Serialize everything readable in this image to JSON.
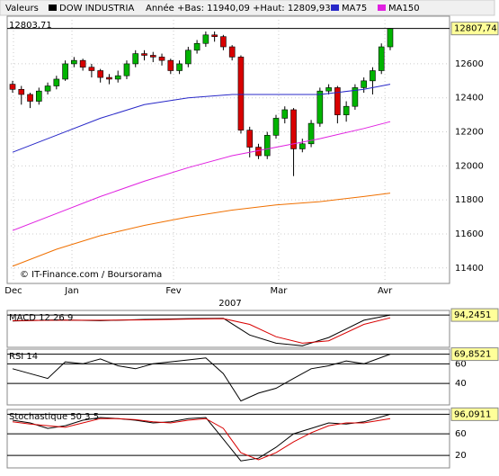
{
  "chart_data": [
    {
      "type": "candlestick",
      "legend_title": "Valeurs",
      "subtitle": "Année +Bas: 11940,09 +Haut: 12809,93",
      "annotation": "12803,71",
      "source": "© IT-Finance.com / Boursorama",
      "xlabel": "2007",
      "candles": {
        "name": "DOW INDUSTRIA",
        "color": "#000000",
        "up_color": "#00b400",
        "down_color": "#d80000",
        "open": [
          12480,
          12450,
          12420,
          12380,
          12440,
          12470,
          12510,
          12600,
          12620,
          12580,
          12560,
          12520,
          12510,
          12530,
          12600,
          12660,
          12650,
          12640,
          12620,
          12560,
          12600,
          12680,
          12720,
          12770,
          12760,
          12700,
          12640,
          12210,
          12110,
          12060,
          12180,
          12280,
          12330,
          12100,
          12130,
          12250,
          12440,
          12460,
          12300,
          12350,
          12460,
          12500,
          12560,
          12700
        ],
        "close": [
          12450,
          12420,
          12380,
          12440,
          12470,
          12510,
          12600,
          12620,
          12580,
          12560,
          12520,
          12510,
          12530,
          12600,
          12660,
          12650,
          12640,
          12620,
          12560,
          12600,
          12680,
          12720,
          12770,
          12760,
          12700,
          12640,
          12210,
          12110,
          12060,
          12180,
          12280,
          12330,
          12100,
          12130,
          12250,
          12440,
          12460,
          12300,
          12350,
          12460,
          12500,
          12560,
          12700,
          12807.74
        ],
        "high": [
          12500,
          12470,
          12430,
          12460,
          12490,
          12530,
          12620,
          12640,
          12630,
          12600,
          12570,
          12540,
          12560,
          12620,
          12680,
          12680,
          12670,
          12660,
          12630,
          12620,
          12700,
          12740,
          12790,
          12790,
          12770,
          12710,
          12650,
          12230,
          12130,
          12200,
          12300,
          12350,
          12340,
          12160,
          12270,
          12460,
          12480,
          12470,
          12380,
          12480,
          12520,
          12580,
          12720,
          12809.93
        ],
        "low": [
          12430,
          12360,
          12340,
          12360,
          12420,
          12450,
          12500,
          12580,
          12560,
          12520,
          12490,
          12480,
          12490,
          12510,
          12580,
          12620,
          12610,
          12590,
          12540,
          12540,
          12580,
          12660,
          12700,
          12730,
          12680,
          12620,
          12190,
          12050,
          12040,
          12040,
          12160,
          12250,
          11940.09,
          12080,
          12110,
          12230,
          12420,
          12250,
          12260,
          12330,
          12430,
          12420,
          12540,
          12680
        ]
      },
      "series": [
        {
          "name": "MA75",
          "color": "#2828c8",
          "x": [
            0,
            5,
            10,
            15,
            20,
            25,
            30,
            35,
            40,
            43
          ],
          "values": [
            12080,
            12180,
            12280,
            12360,
            12400,
            12420,
            12420,
            12420,
            12450,
            12480
          ]
        },
        {
          "name": "MA150",
          "color": "#e020e0",
          "x": [
            0,
            5,
            10,
            15,
            20,
            25,
            30,
            35,
            40,
            43
          ],
          "values": [
            11620,
            11720,
            11820,
            11910,
            11990,
            12060,
            12110,
            12160,
            12220,
            12260
          ]
        },
        {
          "color": "#f07000",
          "x": [
            0,
            5,
            10,
            15,
            20,
            25,
            30,
            35,
            40,
            43
          ],
          "values": [
            11410,
            11510,
            11590,
            11650,
            11700,
            11740,
            11770,
            11790,
            11820,
            11840
          ]
        }
      ],
      "last_value": {
        "value": 12807.74,
        "label": "12807,74"
      },
      "xlim": [
        -0.614,
        49.76
      ],
      "ylim": [
        11309,
        12880
      ],
      "yticks": [
        11400,
        11600,
        11800,
        12000,
        12200,
        12400,
        12600
      ],
      "xticks": [
        {
          "value": 0.1,
          "label": "Dec"
        },
        {
          "value": 6.76,
          "label": "Jan"
        },
        {
          "value": 18.33,
          "label": "Fev"
        },
        {
          "value": 30.3,
          "label": "Mar"
        },
        {
          "value": 42.4,
          "label": "Avr"
        }
      ],
      "grid": true
    },
    {
      "type": "line",
      "title": "MACD 12 26 9",
      "xlim": [
        -0.614,
        49.76
      ],
      "ylim": [
        -300,
        150
      ],
      "yticks": [],
      "last_value": {
        "value": 94.2451,
        "label": "94,2451"
      },
      "series": [
        {
          "color": "#000000",
          "x": [
            0,
            5,
            10,
            15,
            20,
            24,
            27,
            30,
            33,
            36,
            40,
            43
          ],
          "values": [
            20,
            35,
            25,
            40,
            50,
            55,
            -150,
            -250,
            -280,
            -180,
            30,
            94.2451
          ]
        },
        {
          "color": "#d80000",
          "x": [
            0,
            5,
            10,
            15,
            20,
            24,
            27,
            30,
            33,
            36,
            40,
            43
          ],
          "values": [
            25,
            30,
            30,
            35,
            45,
            50,
            -20,
            -170,
            -250,
            -220,
            -20,
            60
          ]
        }
      ]
    },
    {
      "type": "line",
      "title": "RSI 14",
      "xlim": [
        -0.614,
        49.76
      ],
      "ylim": [
        18,
        75
      ],
      "yticks": [
        40,
        60
      ],
      "last_value": {
        "value": 69.8521,
        "label": "69,8521"
      },
      "series": [
        {
          "color": "#000000",
          "x": [
            0,
            2,
            4,
            6,
            8,
            10,
            12,
            14,
            16,
            18,
            20,
            22,
            24,
            26,
            28,
            30,
            32,
            34,
            36,
            38,
            40,
            43
          ],
          "values": [
            55,
            50,
            45,
            62,
            60,
            65,
            58,
            55,
            60,
            62,
            64,
            66,
            50,
            22,
            30,
            35,
            45,
            55,
            58,
            63,
            60,
            69.8521
          ]
        }
      ]
    },
    {
      "type": "line",
      "title": "Stochastique 50 3 5",
      "xlim": [
        -0.614,
        49.76
      ],
      "ylim": [
        -3,
        105
      ],
      "yticks": [
        20,
        60
      ],
      "last_value": {
        "value": 96.0911,
        "label": "96,0911"
      },
      "series": [
        {
          "color": "#000000",
          "x": [
            0,
            2,
            4,
            6,
            8,
            10,
            12,
            14,
            16,
            18,
            20,
            22,
            24,
            26,
            28,
            30,
            32,
            34,
            36,
            38,
            40,
            43
          ],
          "values": [
            85,
            80,
            70,
            75,
            85,
            90,
            88,
            85,
            80,
            82,
            88,
            90,
            50,
            10,
            15,
            35,
            60,
            70,
            80,
            78,
            82,
            96.0911
          ]
        },
        {
          "color": "#d80000",
          "x": [
            0,
            2,
            4,
            6,
            8,
            10,
            12,
            14,
            16,
            18,
            20,
            22,
            24,
            26,
            28,
            30,
            32,
            34,
            36,
            38,
            40,
            43
          ],
          "values": [
            82,
            78,
            75,
            72,
            80,
            88,
            88,
            86,
            82,
            80,
            85,
            88,
            70,
            25,
            12,
            25,
            45,
            62,
            75,
            80,
            80,
            88
          ]
        }
      ]
    }
  ]
}
